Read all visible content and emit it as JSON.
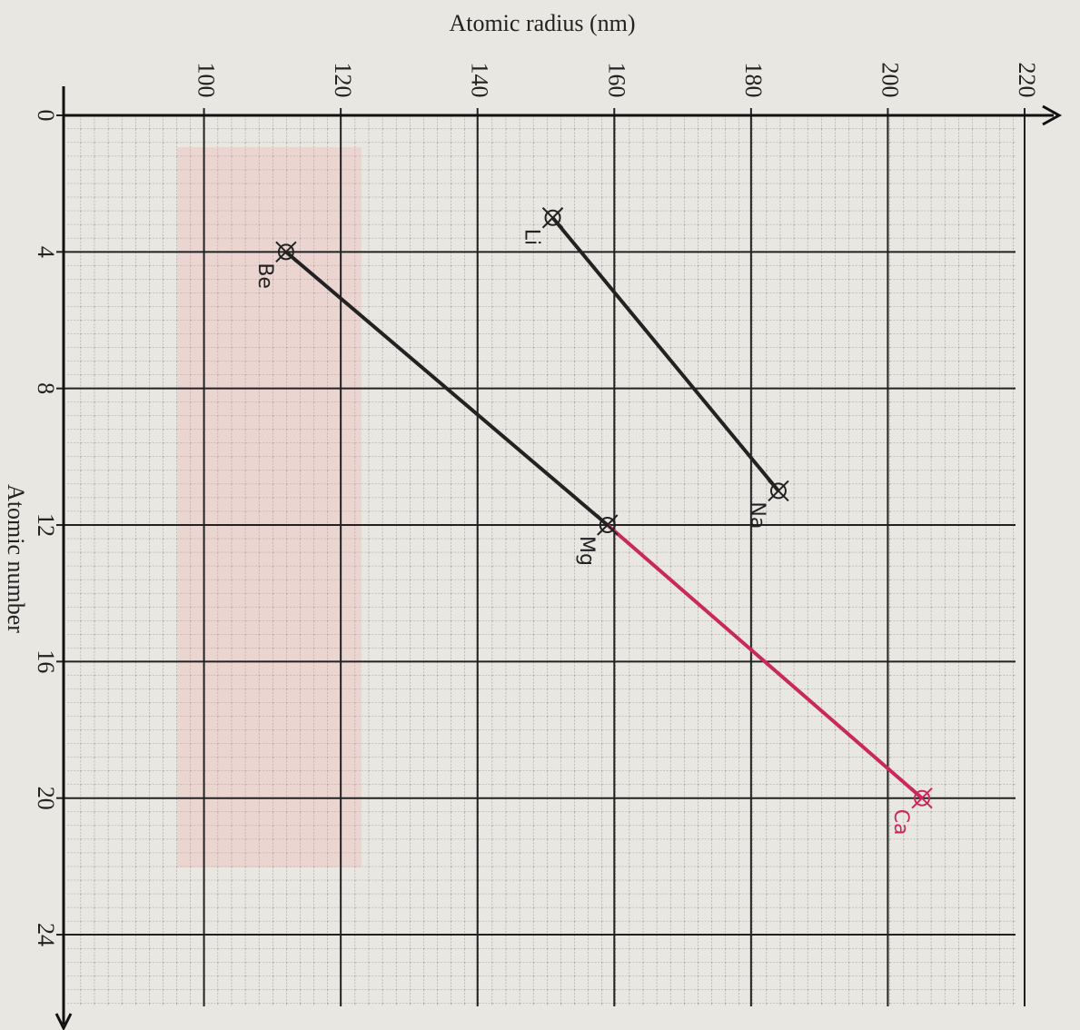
{
  "chart_data": {
    "type": "line",
    "x_label": "Atomic number",
    "y_label": "Atomic radius (nm)",
    "xlim": [
      0,
      26.5
    ],
    "xticks": [
      0,
      4,
      8,
      12,
      16,
      20,
      24
    ],
    "ylim": [
      80,
      220
    ],
    "yticks": [
      100,
      120,
      140,
      160,
      180,
      200,
      220
    ],
    "grid": true,
    "series": [
      {
        "x": [
          3,
          11
        ],
        "values": [
          151,
          184
        ],
        "labels": [
          "Li",
          "Na"
        ],
        "point_colors": [
          "#222",
          "#222"
        ],
        "segment_colors": [
          "#222"
        ]
      },
      {
        "x": [
          4,
          12,
          20
        ],
        "values": [
          112,
          159,
          205
        ],
        "labels": [
          "Be",
          "Mg",
          "Ca"
        ],
        "point_colors": [
          "#222",
          "#222",
          "#c8285a"
        ],
        "segment_colors": [
          "#222",
          "#c8285a"
        ]
      }
    ]
  }
}
